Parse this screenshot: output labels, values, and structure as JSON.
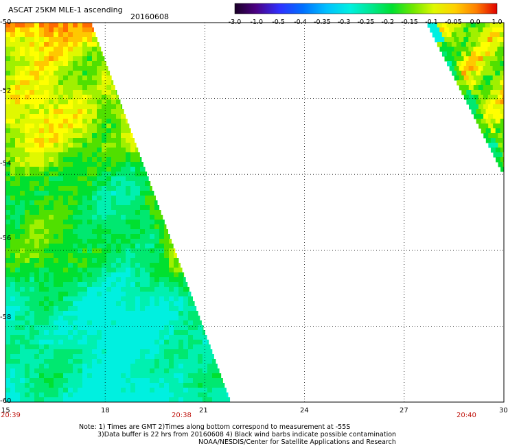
{
  "header": {
    "title": "ASCAT 25KM MLE-1 ascending",
    "date": "20160608"
  },
  "colorbar": {
    "ticks": [
      "-3.0",
      "-1.0",
      "-0.5",
      "-0.4",
      "-0.35",
      "-0.3",
      "-0.25",
      "-0.2",
      "-0.15",
      "-0.1",
      "-0.05",
      "0.0",
      "1.0"
    ]
  },
  "axes": {
    "lat_labels": [
      "-50",
      "-52",
      "-54",
      "-56",
      "-58",
      "-60"
    ],
    "lon_labels": [
      "15",
      "18",
      "21",
      "24",
      "27",
      "30"
    ],
    "time_labels": [
      "20:39",
      "20:38",
      "20:40"
    ]
  },
  "notes": {
    "line1": "Note: 1) Times are GMT 2)Times along bottom correspond to measurement at -55S",
    "line2": "3)Data buffer is 22 hrs from 20160608 4) Black wind barbs indicate possible contamination",
    "line3": "NOAA/NESDIS/Center for Satellite Applications and Research"
  },
  "chart_data": {
    "type": "heatmap",
    "title": "ASCAT 25KM MLE-1 ascending",
    "date": "20160608",
    "x_range": [
      15,
      30
    ],
    "y_range": [
      -60,
      -50
    ],
    "x_ticks": [
      15,
      18,
      21,
      24,
      27,
      30
    ],
    "y_ticks": [
      -50,
      -52,
      -54,
      -56,
      -58,
      -60
    ],
    "grid": true,
    "colorscale": [
      "#2a0033",
      "#5a00a0",
      "#3c2cff",
      "#0060ff",
      "#00a8ff",
      "#00e8e8",
      "#00e8a0",
      "#00e040",
      "#40e000",
      "#b8f000",
      "#ffff00",
      "#ffb000",
      "#ff6000",
      "#e00000"
    ],
    "colorbar_ticks": [
      -3.0,
      -1.0,
      -0.5,
      -0.4,
      -0.35,
      -0.3,
      -0.25,
      -0.2,
      -0.15,
      -0.1,
      -0.05,
      0.0,
      1.0
    ],
    "swaths": [
      {
        "region": "west",
        "lon_min": 15.0,
        "lat_min": -60.0,
        "lat_max": -50.0,
        "edge_lon_at_top": 17.6,
        "edge_lon_at_bottom": 21.8,
        "dominant_values": "-0.05 to 0.0 north, -0.25 to -0.15 south"
      },
      {
        "region": "east",
        "lon_max": 30.0,
        "lat_min": -53.8,
        "lat_max": -50.0,
        "edge_lon_at_top": 27.7,
        "edge_lon_at_bottom": 29.9,
        "dominant_values": "-0.1 to 0.0"
      }
    ]
  }
}
